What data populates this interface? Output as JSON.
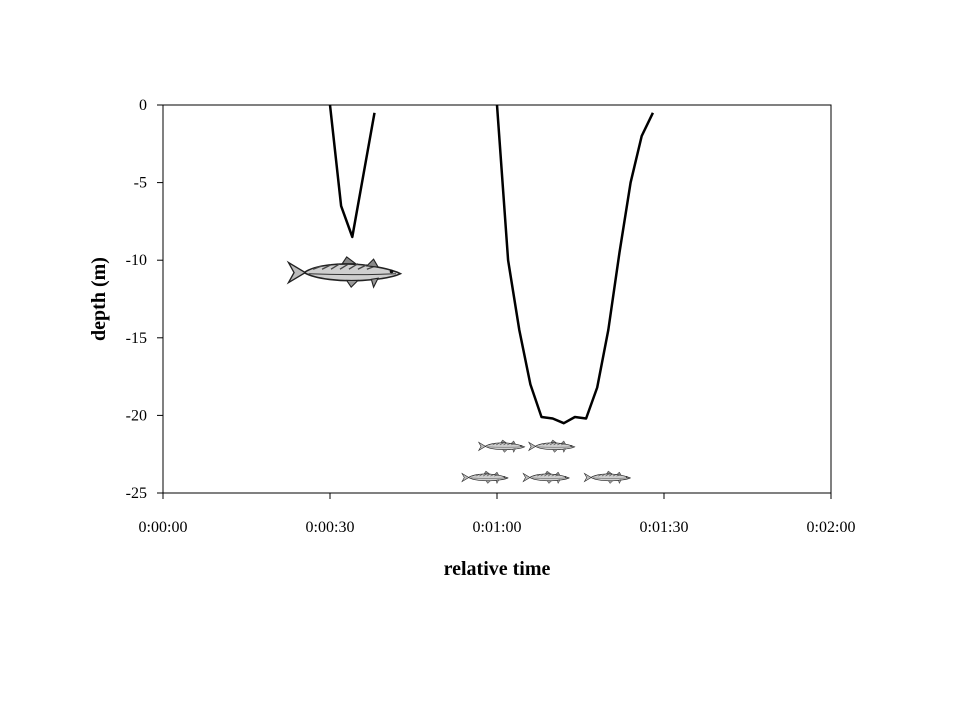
{
  "chart_data": {
    "type": "line",
    "title": "",
    "xlabel": "relative time",
    "ylabel": "depth (m)",
    "xlim": [
      0,
      120
    ],
    "ylim": [
      -25,
      0
    ],
    "x_ticks": [
      {
        "value": 0,
        "label": "0:00:00"
      },
      {
        "value": 30,
        "label": "0:00:30"
      },
      {
        "value": 60,
        "label": "0:01:00"
      },
      {
        "value": 90,
        "label": "0:01:30"
      },
      {
        "value": 120,
        "label": "0:02:00"
      }
    ],
    "y_ticks": [
      {
        "value": 0,
        "label": "0"
      },
      {
        "value": -5,
        "label": "-5"
      },
      {
        "value": -10,
        "label": "-10"
      },
      {
        "value": -15,
        "label": "-15"
      },
      {
        "value": -20,
        "label": "-20"
      },
      {
        "value": -25,
        "label": "-25"
      }
    ],
    "grid": false,
    "legend": "none",
    "line_color": "#000000",
    "series": [
      {
        "x": [
          30,
          32,
          34,
          36,
          38
        ],
        "y": [
          0,
          -6.5,
          -8.5,
          -4.5,
          -0.5
        ]
      },
      {
        "x": [
          60,
          62,
          64,
          66,
          68,
          70,
          72,
          74,
          76,
          78,
          80,
          82,
          84,
          86,
          88
        ],
        "y": [
          0,
          -10,
          -14.5,
          -18,
          -20.1,
          -20.2,
          -20.5,
          -20.1,
          -20.2,
          -18.2,
          -14.5,
          -9.5,
          -5,
          -2,
          -0.5
        ]
      }
    ],
    "fish_annotations": [
      {
        "kind": "large-fish",
        "x": 33,
        "y": -10.8
      },
      {
        "kind": "small-fish",
        "x": 61,
        "y": -22
      },
      {
        "kind": "small-fish",
        "x": 70,
        "y": -22
      },
      {
        "kind": "small-fish",
        "x": 58,
        "y": -24
      },
      {
        "kind": "small-fish",
        "x": 69,
        "y": -24
      },
      {
        "kind": "small-fish",
        "x": 80,
        "y": -24
      }
    ]
  }
}
